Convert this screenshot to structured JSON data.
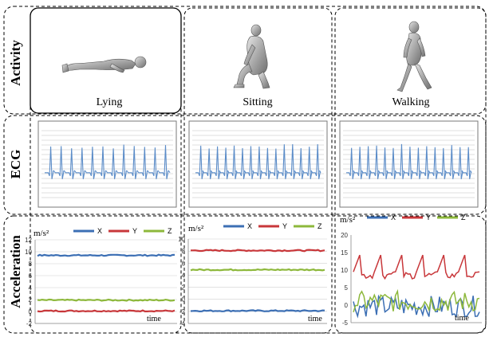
{
  "row_labels": {
    "activity": "Activity",
    "ecg": "ECG",
    "acceleration": "Acceleration"
  },
  "activities": [
    {
      "name": "Lying",
      "pose": "lying-figure"
    },
    {
      "name": "Sitting",
      "pose": "sitting-figure"
    },
    {
      "name": "Walking",
      "pose": "walking-figure"
    }
  ],
  "colors": {
    "x": "#3c6fb4",
    "y": "#c8373a",
    "z": "#8db83b",
    "ecg": "#5b8cc8",
    "grid": "#bfbfbf",
    "border": "#000000"
  },
  "chart_data": [
    {
      "type": "line",
      "title": "",
      "ylabel": "m/s²",
      "xlabel": "time",
      "ylim": [
        -2,
        12
      ],
      "yticks": [
        "-2",
        "0",
        "2",
        "4",
        "6",
        "8",
        "10",
        "12"
      ],
      "legend": "top",
      "grid": true,
      "series": [
        {
          "name": "X",
          "color": "#3c6fb4",
          "level": 9.4,
          "pattern": "flat"
        },
        {
          "name": "Y",
          "color": "#c8373a",
          "level": 0.1,
          "pattern": "flat"
        },
        {
          "name": "Z",
          "color": "#8db83b",
          "level": 1.9,
          "pattern": "flat"
        }
      ]
    },
    {
      "type": "line",
      "title": "",
      "ylabel": "m/s²",
      "xlabel": "time",
      "ylim": [
        -4,
        10
      ],
      "yticks": [
        "-4",
        "-2",
        "0",
        "2",
        "4",
        "6",
        "8",
        "10"
      ],
      "legend": "top",
      "grid": true,
      "series": [
        {
          "name": "X",
          "color": "#3c6fb4",
          "level": -1.9,
          "pattern": "flat"
        },
        {
          "name": "Y",
          "color": "#c8373a",
          "level": 8.1,
          "pattern": "flat"
        },
        {
          "name": "Z",
          "color": "#8db83b",
          "level": 4.9,
          "pattern": "flat"
        }
      ]
    },
    {
      "type": "line",
      "title": "",
      "ylabel": "m/s²",
      "xlabel": "time",
      "ylim": [
        -5,
        20
      ],
      "yticks": [
        "-5",
        "0",
        "5",
        "10",
        "15",
        "20"
      ],
      "legend": "top",
      "grid": false,
      "series": [
        {
          "name": "X",
          "color": "#3c6fb4",
          "level": -0.3,
          "pattern": "noisy"
        },
        {
          "name": "Y",
          "color": "#c8373a",
          "level": 9.5,
          "pattern": "periodic"
        },
        {
          "name": "Z",
          "color": "#8db83b",
          "level": 1.0,
          "pattern": "noisy"
        }
      ]
    }
  ]
}
